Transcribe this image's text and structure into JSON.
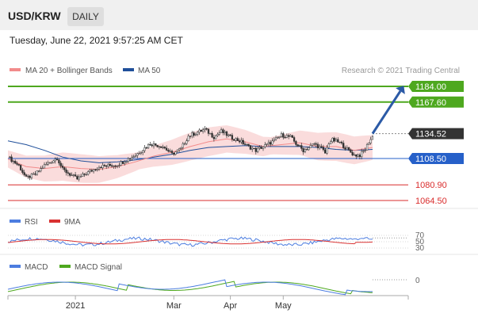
{
  "header": {
    "pair": "USD/KRW",
    "timeframe": "DAILY",
    "datetime": "Tuesday, June 22, 2021 9:57:25 AM CET"
  },
  "legend": {
    "ma20_bb": "MA 20 + Bollinger Bands",
    "ma50": "MA 50",
    "copyright": "Research © 2021 Trading Central",
    "rsi": "RSI",
    "rsi_ma": "9MA",
    "macd": "MACD",
    "macd_signal": "MACD Signal"
  },
  "colors": {
    "ma20": "#f28b8b",
    "ma50": "#1f4f9a",
    "bollinger_fill": "#f9d6d6",
    "resistance": "#4ea81f",
    "pivot": "#2660c9",
    "support": "#d92b2b",
    "current_price": "#333333",
    "arrow": "#2b5aa6",
    "rsi": "#4c7de0",
    "rsi_ma": "#d93131",
    "macd": "#4c7de0",
    "macd_signal": "#4ea81f"
  },
  "chart_data": {
    "type": "candlestick",
    "instrument": "USD/KRW",
    "timeframe": "daily",
    "x_ticks": [
      "2021",
      "Mar",
      "Apr",
      "May"
    ],
    "levels": [
      {
        "label": "1184.00",
        "value": 1184.0,
        "kind": "resistance"
      },
      {
        "label": "1167.60",
        "value": 1167.6,
        "kind": "resistance"
      },
      {
        "label": "1134.52",
        "value": 1134.52,
        "kind": "current"
      },
      {
        "label": "1108.50",
        "value": 1108.5,
        "kind": "pivot"
      },
      {
        "label": "1080.90",
        "value": 1080.9,
        "kind": "support"
      },
      {
        "label": "1064.50",
        "value": 1064.5,
        "kind": "support"
      }
    ],
    "price_path": [
      [
        0,
        1110
      ],
      [
        6,
        1101
      ],
      [
        10,
        1088
      ],
      [
        15,
        1092
      ],
      [
        20,
        1101
      ],
      [
        27,
        1109
      ],
      [
        30,
        1097
      ],
      [
        38,
        1087
      ],
      [
        43,
        1093
      ],
      [
        50,
        1100
      ],
      [
        60,
        1102
      ],
      [
        70,
        1112
      ],
      [
        78,
        1124
      ],
      [
        85,
        1121
      ],
      [
        90,
        1113
      ],
      [
        95,
        1119
      ],
      [
        99,
        1132
      ],
      [
        104,
        1136
      ],
      [
        108,
        1139
      ],
      [
        113,
        1131
      ],
      [
        117,
        1137
      ],
      [
        122,
        1131
      ],
      [
        127,
        1127
      ],
      [
        132,
        1121
      ],
      [
        136,
        1117
      ],
      [
        141,
        1122
      ],
      [
        146,
        1127
      ],
      [
        150,
        1133
      ],
      [
        155,
        1131
      ],
      [
        158,
        1124
      ],
      [
        162,
        1117
      ],
      [
        165,
        1120
      ],
      [
        168,
        1124
      ],
      [
        172,
        1119
      ],
      [
        174,
        1114
      ],
      [
        176,
        1125
      ],
      [
        178,
        1128
      ],
      [
        182,
        1125
      ],
      [
        185,
        1120
      ],
      [
        188,
        1115
      ],
      [
        190,
        1112
      ],
      [
        193,
        1112
      ],
      [
        196,
        1118
      ],
      [
        198,
        1126
      ],
      [
        200,
        1131
      ]
    ],
    "ma20_path": [
      [
        0,
        1108
      ],
      [
        10,
        1100
      ],
      [
        20,
        1098
      ],
      [
        30,
        1100
      ],
      [
        40,
        1098
      ],
      [
        50,
        1097
      ],
      [
        60,
        1100
      ],
      [
        70,
        1105
      ],
      [
        80,
        1111
      ],
      [
        90,
        1115
      ],
      [
        100,
        1121
      ],
      [
        110,
        1126
      ],
      [
        120,
        1129
      ],
      [
        130,
        1126
      ],
      [
        140,
        1121
      ],
      [
        150,
        1123
      ],
      [
        160,
        1125
      ],
      [
        170,
        1121
      ],
      [
        180,
        1121
      ],
      [
        190,
        1117
      ],
      [
        200,
        1120
      ]
    ],
    "ma50_path": [
      [
        0,
        1127
      ],
      [
        10,
        1123
      ],
      [
        20,
        1117
      ],
      [
        30,
        1110
      ],
      [
        40,
        1106
      ],
      [
        50,
        1104
      ],
      [
        60,
        1105
      ],
      [
        70,
        1107
      ],
      [
        80,
        1110
      ],
      [
        90,
        1113
      ],
      [
        100,
        1117
      ],
      [
        110,
        1120
      ],
      [
        120,
        1121
      ],
      [
        130,
        1122
      ],
      [
        140,
        1121
      ],
      [
        150,
        1121
      ],
      [
        160,
        1121
      ],
      [
        170,
        1120
      ],
      [
        180,
        1118
      ],
      [
        190,
        1117
      ],
      [
        200,
        1118
      ]
    ],
    "forecast_arrow": {
      "from": 1134.52,
      "to": 1184.0
    },
    "rsi": {
      "levels": [
        "70",
        "50",
        "30"
      ],
      "last": 62
    },
    "macd": {
      "zero_label": "0",
      "last": 3.5
    }
  }
}
